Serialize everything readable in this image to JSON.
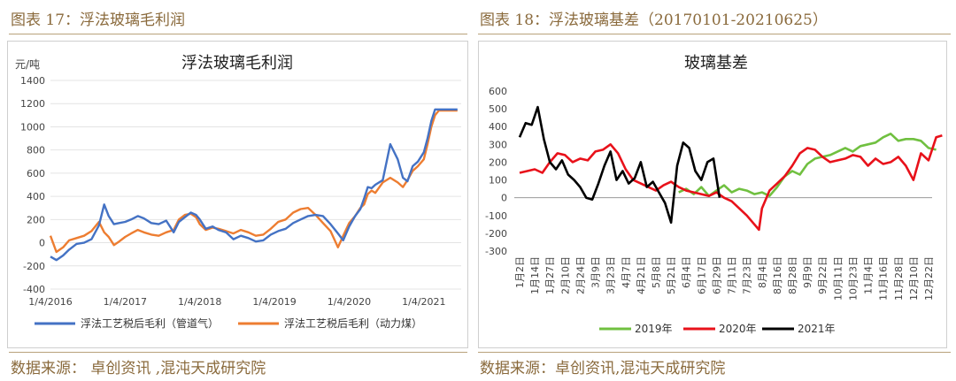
{
  "left": {
    "figure_title": "图表 17：浮法玻璃毛利润",
    "source": "数据来源： 卓创资讯 ,混沌天成研究院"
  },
  "right": {
    "figure_title": "图表 18：浮法玻璃基差（20170101-20210625）",
    "source": "数据来源：卓创资讯,混沌天成研究院"
  },
  "colors": {
    "accent": "#8a6a3c",
    "blue": "#4472c4",
    "orange": "#ed7d31",
    "green": "#70c040",
    "red": "#e8111a",
    "black": "#000000"
  },
  "chart_data": [
    {
      "type": "line",
      "title": "浮法玻璃毛利润",
      "ylabel": "元/吨",
      "ylim": [
        -400,
        1400
      ],
      "yticks": [
        "1400",
        "1200",
        "1000",
        "800",
        "600",
        "400",
        "200",
        "0",
        "-200",
        "-400"
      ],
      "xticks": [
        "1/4/2016",
        "1/4/2017",
        "1/4/2018",
        "1/4/2019",
        "1/4/2020",
        "1/4/2021"
      ],
      "x": [
        2016.0,
        2016.08,
        2016.17,
        2016.25,
        2016.35,
        2016.45,
        2016.55,
        2016.65,
        2016.72,
        2016.78,
        2016.85,
        2016.92,
        2017.0,
        2017.08,
        2017.17,
        2017.25,
        2017.35,
        2017.45,
        2017.55,
        2017.65,
        2017.72,
        2017.8,
        2017.88,
        2017.95,
        2018.0,
        2018.08,
        2018.17,
        2018.25,
        2018.35,
        2018.45,
        2018.55,
        2018.65,
        2018.75,
        2018.85,
        2018.95,
        2019.05,
        2019.15,
        2019.25,
        2019.35,
        2019.45,
        2019.55,
        2019.65,
        2019.75,
        2019.85,
        2019.92,
        2020.0,
        2020.08,
        2020.15,
        2020.2,
        2020.25,
        2020.3,
        2020.35,
        2020.45,
        2020.55,
        2020.65,
        2020.72,
        2020.78,
        2020.85,
        2020.92,
        2021.0,
        2021.05,
        2021.1,
        2021.15,
        2021.2,
        2021.25,
        2021.3,
        2021.35,
        2021.4,
        2021.45
      ],
      "series": [
        {
          "name": "浮法工艺税后毛利（管道气）",
          "values": [
            -120,
            -150,
            -110,
            -60,
            -10,
            0,
            30,
            150,
            330,
            230,
            160,
            170,
            180,
            200,
            230,
            210,
            170,
            160,
            190,
            90,
            180,
            220,
            260,
            240,
            200,
            120,
            140,
            110,
            90,
            30,
            60,
            40,
            10,
            20,
            70,
            100,
            120,
            170,
            200,
            230,
            240,
            230,
            160,
            80,
            20,
            140,
            230,
            290,
            380,
            480,
            470,
            500,
            540,
            850,
            720,
            560,
            530,
            660,
            700,
            780,
            900,
            1050,
            1150,
            1150,
            1150,
            1150,
            1150,
            1150,
            1150
          ]
        },
        {
          "name": "浮法工艺税后毛利（动力煤）",
          "values": [
            60,
            -80,
            -40,
            20,
            40,
            60,
            100,
            180,
            90,
            50,
            -20,
            10,
            50,
            80,
            110,
            90,
            70,
            60,
            90,
            110,
            200,
            240,
            250,
            220,
            160,
            110,
            130,
            120,
            100,
            80,
            110,
            90,
            60,
            70,
            120,
            180,
            200,
            260,
            290,
            300,
            240,
            170,
            100,
            -40,
            60,
            170,
            230,
            300,
            330,
            420,
            450,
            430,
            520,
            560,
            520,
            480,
            540,
            620,
            660,
            720,
            850,
            1000,
            1100,
            1140,
            1140,
            1140,
            1140,
            1140,
            1140
          ]
        }
      ]
    },
    {
      "type": "line",
      "title": "玻璃基差",
      "ylim": [
        -300,
        600
      ],
      "yticks": [
        "600",
        "500",
        "400",
        "300",
        "200",
        "100",
        "0",
        "-100",
        "-200",
        "-300"
      ],
      "xticks": [
        "1月2日",
        "1月14日",
        "1月27日",
        "2月10日",
        "2月24日",
        "3月9日",
        "3月23日",
        "4月7日",
        "4月21日",
        "5月8日",
        "5月21日",
        "6月4日",
        "6月17日",
        "6月29日",
        "7月11日",
        "7月23日",
        "8月4日",
        "8月16日",
        "8月28日",
        "9月9日",
        "9月22日",
        "10月11日",
        "10月23日",
        "11月4日",
        "11月16日",
        "11月28日",
        "12月10日",
        "12月22日"
      ],
      "series": [
        {
          "name": "2019年",
          "points": [
            [
              10.5,
              30
            ],
            [
              11.0,
              50
            ],
            [
              11.5,
              20
            ],
            [
              12.0,
              60
            ],
            [
              12.5,
              10
            ],
            [
              13.0,
              40
            ],
            [
              13.5,
              70
            ],
            [
              14.0,
              30
            ],
            [
              14.5,
              50
            ],
            [
              15.0,
              40
            ],
            [
              15.5,
              20
            ],
            [
              16.0,
              30
            ],
            [
              16.5,
              10
            ],
            [
              17.0,
              60
            ],
            [
              17.5,
              120
            ],
            [
              18.0,
              150
            ],
            [
              18.5,
              130
            ],
            [
              19.0,
              190
            ],
            [
              19.5,
              220
            ],
            [
              20.0,
              230
            ],
            [
              20.5,
              240
            ],
            [
              21.0,
              260
            ],
            [
              21.5,
              280
            ],
            [
              22.0,
              260
            ],
            [
              22.5,
              290
            ],
            [
              23.0,
              300
            ],
            [
              23.5,
              310
            ],
            [
              24.0,
              340
            ],
            [
              24.5,
              360
            ],
            [
              25.0,
              320
            ],
            [
              25.5,
              330
            ],
            [
              26.0,
              330
            ],
            [
              26.5,
              320
            ],
            [
              27.0,
              280
            ],
            [
              27.5,
              270
            ]
          ]
        },
        {
          "name": "2020年",
          "points": [
            [
              0.0,
              140
            ],
            [
              0.5,
              150
            ],
            [
              1.0,
              160
            ],
            [
              1.5,
              140
            ],
            [
              2.0,
              200
            ],
            [
              2.5,
              250
            ],
            [
              3.0,
              240
            ],
            [
              3.5,
              200
            ],
            [
              4.0,
              220
            ],
            [
              4.5,
              210
            ],
            [
              5.0,
              260
            ],
            [
              5.5,
              270
            ],
            [
              6.0,
              300
            ],
            [
              6.5,
              250
            ],
            [
              7.0,
              160
            ],
            [
              7.5,
              100
            ],
            [
              8.0,
              80
            ],
            [
              8.5,
              60
            ],
            [
              9.0,
              40
            ],
            [
              9.5,
              70
            ],
            [
              10.0,
              90
            ],
            [
              10.5,
              60
            ],
            [
              11.0,
              40
            ],
            [
              11.5,
              30
            ],
            [
              12.0,
              20
            ],
            [
              12.5,
              10
            ],
            [
              13.0,
              30
            ],
            [
              13.5,
              0
            ],
            [
              14.0,
              -20
            ],
            [
              14.5,
              -60
            ],
            [
              15.0,
              -100
            ],
            [
              15.5,
              -150
            ],
            [
              15.8,
              -180
            ],
            [
              16.0,
              -60
            ],
            [
              16.5,
              40
            ],
            [
              17.0,
              80
            ],
            [
              17.5,
              120
            ],
            [
              18.0,
              180
            ],
            [
              18.5,
              250
            ],
            [
              19.0,
              280
            ],
            [
              19.5,
              270
            ],
            [
              20.0,
              230
            ],
            [
              20.5,
              200
            ],
            [
              21.0,
              210
            ],
            [
              21.5,
              220
            ],
            [
              22.0,
              240
            ],
            [
              22.5,
              230
            ],
            [
              23.0,
              180
            ],
            [
              23.5,
              220
            ],
            [
              24.0,
              190
            ],
            [
              24.5,
              200
            ],
            [
              25.0,
              230
            ],
            [
              25.5,
              180
            ],
            [
              26.0,
              100
            ],
            [
              26.5,
              250
            ],
            [
              27.0,
              210
            ],
            [
              27.5,
              340
            ],
            [
              27.9,
              350
            ]
          ]
        },
        {
          "name": "2021年",
          "points": [
            [
              0.0,
              340
            ],
            [
              0.4,
              420
            ],
            [
              0.8,
              410
            ],
            [
              1.2,
              510
            ],
            [
              1.6,
              330
            ],
            [
              2.0,
              200
            ],
            [
              2.4,
              160
            ],
            [
              2.8,
              210
            ],
            [
              3.2,
              130
            ],
            [
              3.6,
              100
            ],
            [
              4.0,
              60
            ],
            [
              4.4,
              0
            ],
            [
              4.8,
              -10
            ],
            [
              5.2,
              80
            ],
            [
              5.6,
              180
            ],
            [
              6.0,
              260
            ],
            [
              6.4,
              100
            ],
            [
              6.8,
              150
            ],
            [
              7.2,
              80
            ],
            [
              7.6,
              110
            ],
            [
              8.0,
              200
            ],
            [
              8.4,
              60
            ],
            [
              8.8,
              90
            ],
            [
              9.2,
              30
            ],
            [
              9.6,
              -30
            ],
            [
              10.0,
              -140
            ],
            [
              10.4,
              180
            ],
            [
              10.8,
              310
            ],
            [
              11.2,
              280
            ],
            [
              11.6,
              150
            ],
            [
              12.0,
              100
            ],
            [
              12.4,
              200
            ],
            [
              12.8,
              220
            ],
            [
              13.2,
              0
            ]
          ]
        }
      ]
    }
  ]
}
